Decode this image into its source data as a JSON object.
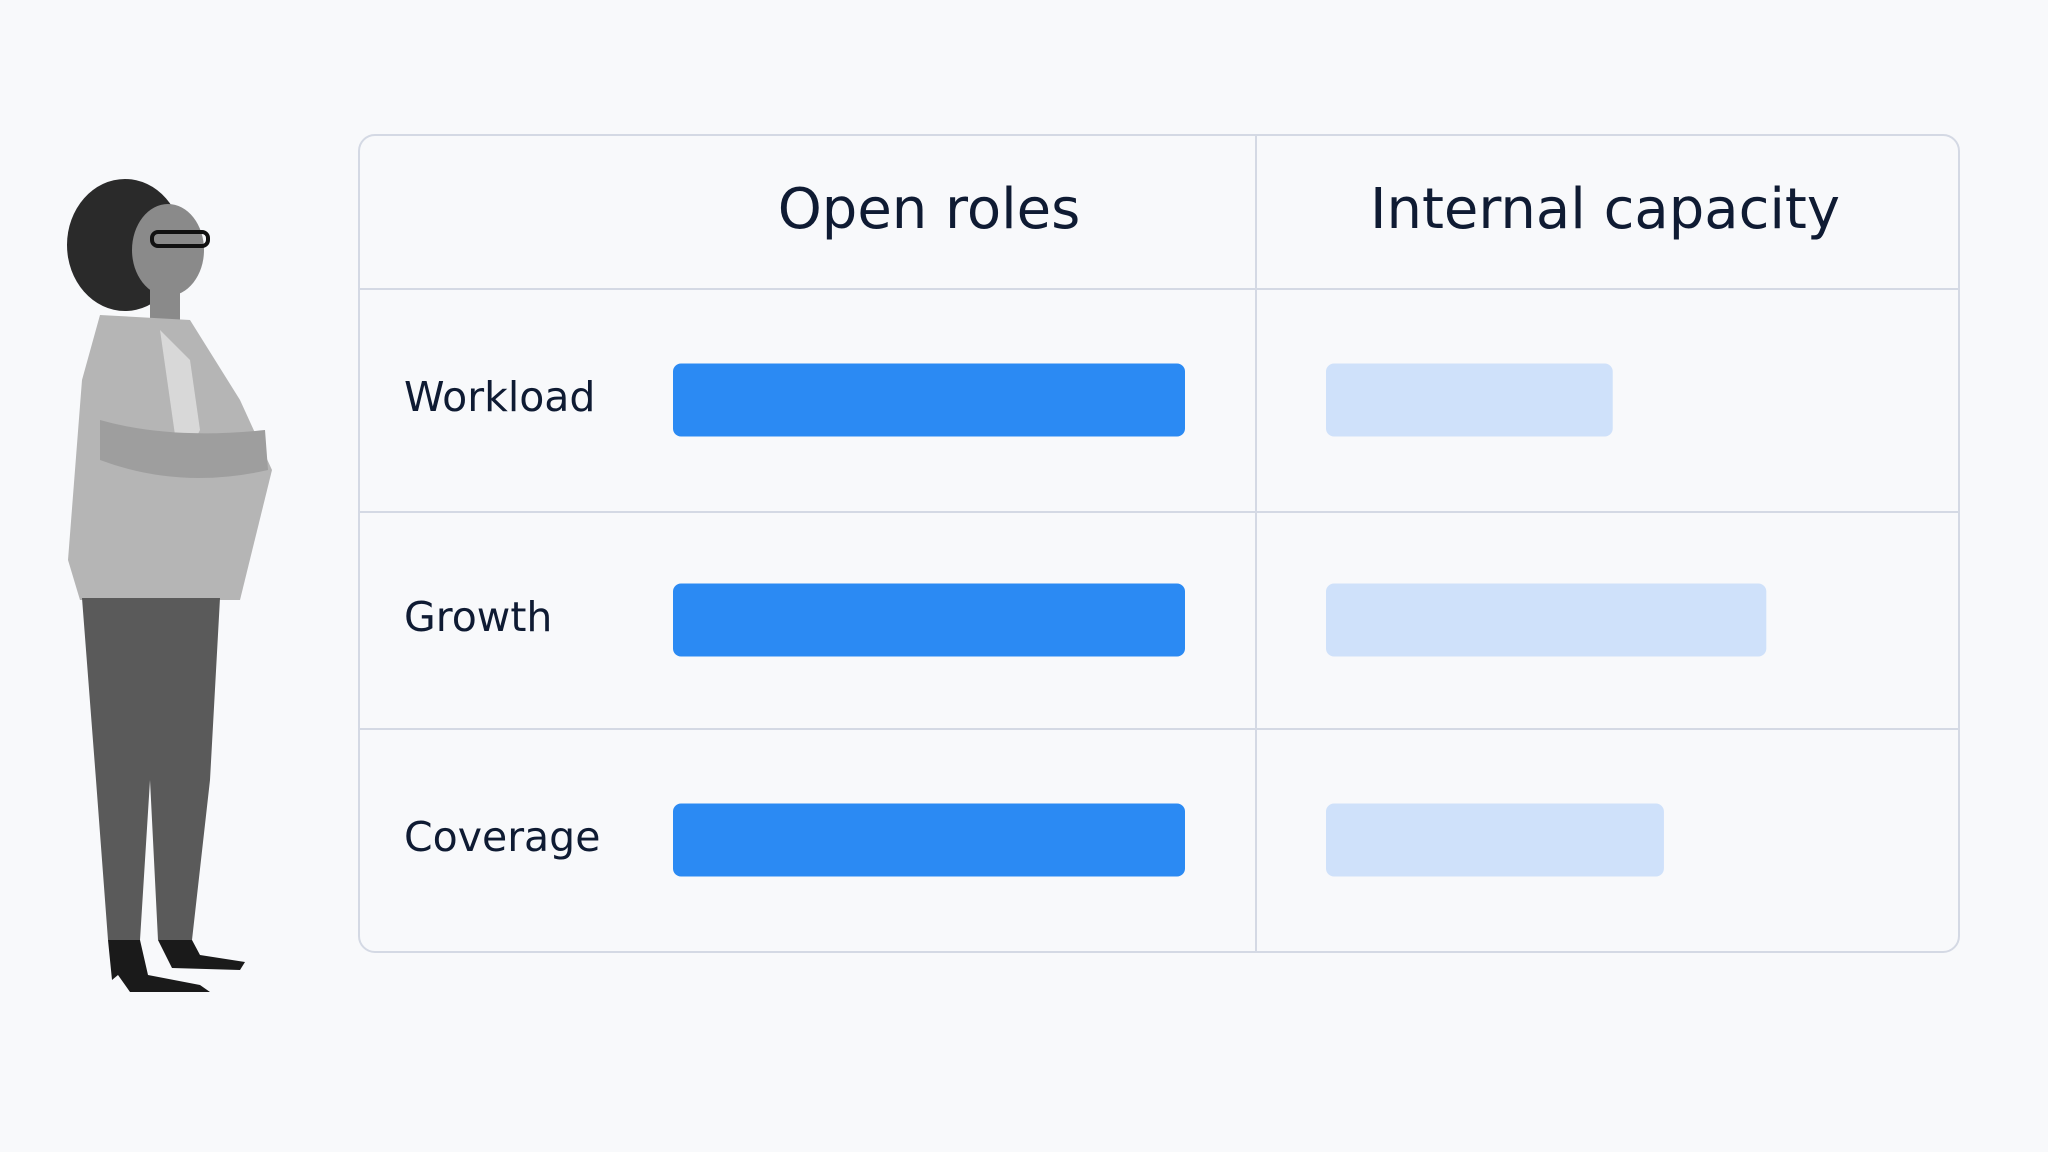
{
  "chart_data": {
    "type": "bar",
    "categories": [
      "Workload",
      "Growth",
      "Coverage"
    ],
    "series": [
      {
        "name": "Open roles",
        "color": "#2b8af3",
        "values": [
          100,
          100,
          100
        ]
      },
      {
        "name": "Internal capacity",
        "color": "#cfe1fa",
        "values": [
          56,
          86,
          66
        ]
      }
    ]
  }
}
